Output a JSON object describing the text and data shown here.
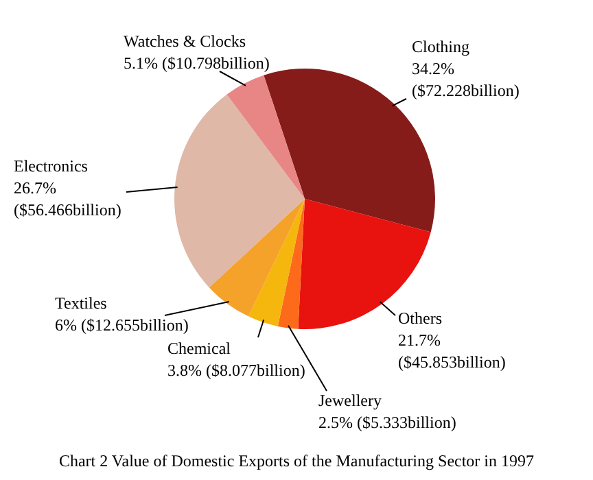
{
  "chart_data": {
    "type": "pie",
    "title": "Chart 2 Value of Domestic Exports of the Manufacturing Sector in 1997",
    "categories": [
      "Clothing",
      "Others",
      "Jewellery",
      "Chemical",
      "Textiles",
      "Electronics",
      "Watches & Clocks"
    ],
    "values": [
      34.2,
      21.7,
      2.5,
      3.8,
      6,
      26.7,
      5.1
    ],
    "colors": [
      "#861c1a",
      "#e8120e",
      "#fd6a1a",
      "#f5b60e",
      "#f5a22a",
      "#dfb8a7",
      "#e88585"
    ],
    "value_labels": [
      "34.2% ($72.228billion)",
      "21.7% ($45.853billion)",
      "2.5% ($5.333billion)",
      "3.8% ($8.077billion)",
      "6% ($12.655billion)",
      "26.7% ($56.466billion)",
      "5.1% ($10.798billion)"
    ]
  }
}
